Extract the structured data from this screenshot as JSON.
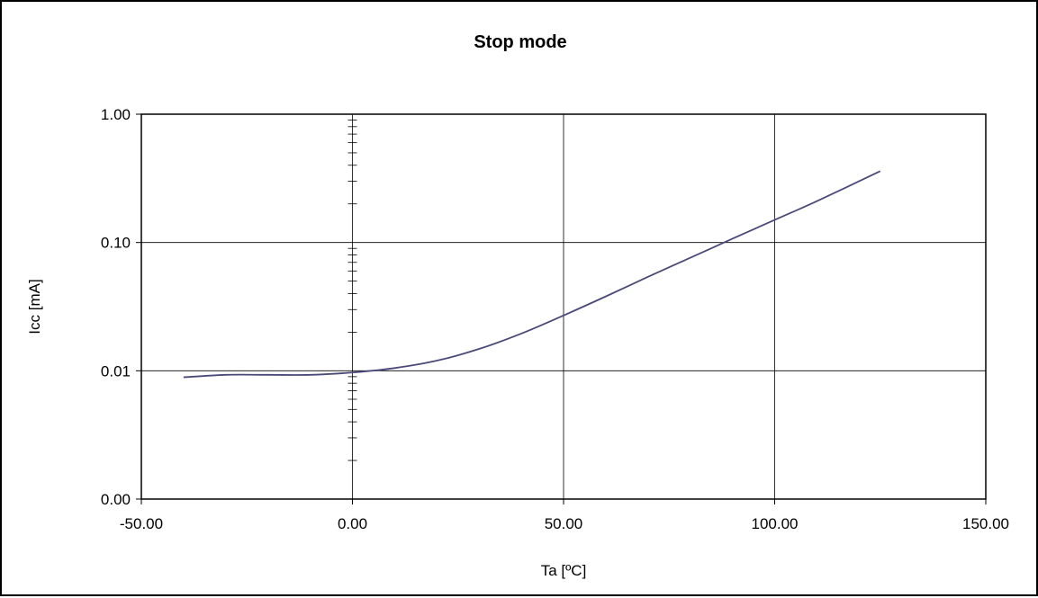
{
  "chart_data": {
    "type": "line",
    "title": "Stop mode",
    "xlabel": "Ta [ºC]",
    "ylabel": "Icc [mA]",
    "xlim": [
      -50,
      150
    ],
    "x_ticks": [
      -50,
      0,
      50,
      100,
      150
    ],
    "x_tick_labels": [
      "-50.00",
      "0.00",
      "50.00",
      "100.00",
      "150.00"
    ],
    "y_scale": "log",
    "ylim": [
      0.001,
      1.0
    ],
    "y_ticks": [
      0.001,
      0.01,
      0.1,
      1.0
    ],
    "y_tick_labels": [
      "0.00",
      "0.01",
      "0.10",
      "1.00"
    ],
    "grid": true,
    "line_color": "#4a4a7a",
    "series": [
      {
        "x": [
          -40,
          -30,
          -20,
          -10,
          0,
          10,
          20,
          30,
          40,
          50,
          60,
          70,
          80,
          90,
          100,
          110,
          125
        ],
        "values": [
          0.0089,
          0.0093,
          0.0093,
          0.0093,
          0.0097,
          0.0105,
          0.012,
          0.0148,
          0.0195,
          0.027,
          0.038,
          0.054,
          0.076,
          0.107,
          0.15,
          0.21,
          0.36
        ]
      }
    ]
  }
}
